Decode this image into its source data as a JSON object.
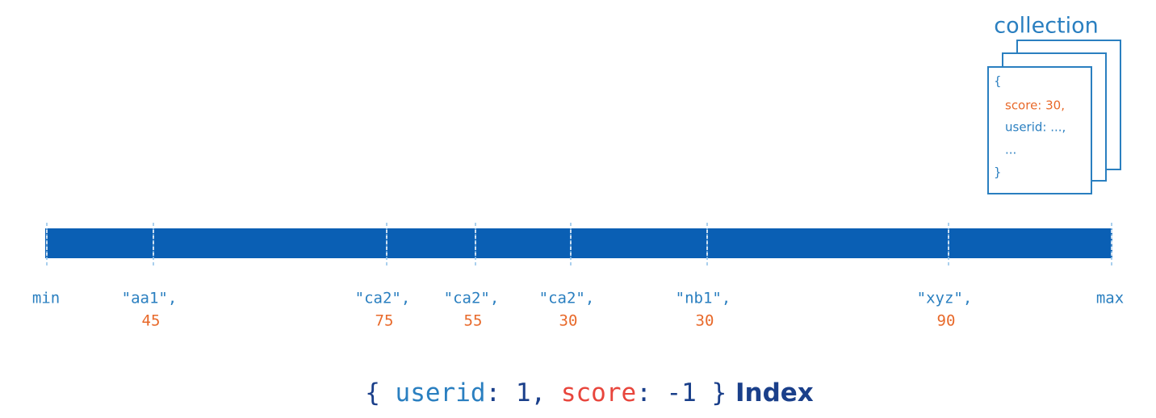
{
  "collection": {
    "title": "collection",
    "document": [
      "{",
      "score: 30,",
      "userid: ...,",
      "...",
      "}"
    ]
  },
  "index": {
    "min": "min",
    "max": "max",
    "entries": [
      {
        "userid": "\"aa1\",",
        "score": 45
      },
      {
        "userid": "\"ca2\",",
        "score": 75
      },
      {
        "userid": "\"ca2\",",
        "score": 55
      },
      {
        "userid": "\"ca2\",",
        "score": 30
      },
      {
        "userid": "\"nb1\",",
        "score": 30
      },
      {
        "userid": "\"xyz\",",
        "score": 90
      }
    ]
  },
  "caption": {
    "open": "{ ",
    "field1": "userid",
    "spec1": ": 1, ",
    "field2": "score",
    "spec2": ": -1 }",
    "label": " Index"
  }
}
